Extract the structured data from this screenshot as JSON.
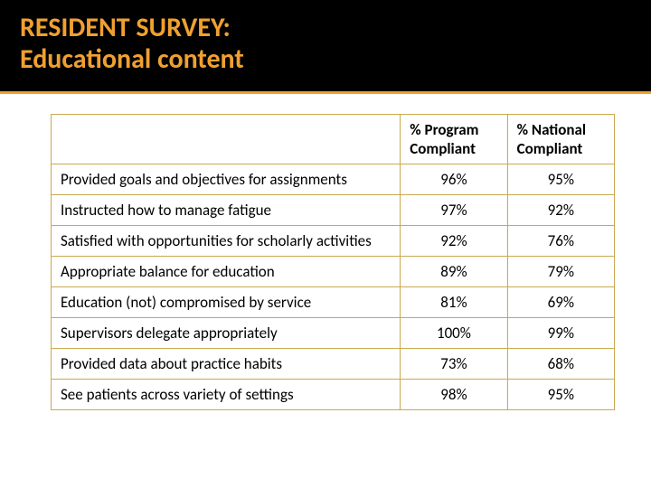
{
  "title": {
    "line1": "RESIDENT SURVEY:",
    "line2": "Educational content"
  },
  "table": {
    "columns": [
      "% Program Compliant",
      "% National Compliant"
    ],
    "rows": [
      {
        "label": "Provided goals and objectives for assignments",
        "program": "96%",
        "national": "95%"
      },
      {
        "label": "Instructed how to manage fatigue",
        "program": "97%",
        "national": "92%"
      },
      {
        "label": "Satisfied with opportunities for scholarly activities",
        "program": "92%",
        "national": "76%"
      },
      {
        "label": "Appropriate balance for education",
        "program": "89%",
        "national": "79%"
      },
      {
        "label": "Education (not) compromised by service",
        "program": "81%",
        "national": "69%"
      },
      {
        "label": "Supervisors delegate appropriately",
        "program": "100%",
        "national": "99%"
      },
      {
        "label": "Provided data about practice habits",
        "program": "73%",
        "national": "68%"
      },
      {
        "label": "See patients across variety of settings",
        "program": "98%",
        "national": "95%"
      }
    ],
    "border_color": "#c9a94f",
    "title_color": "#f0a030",
    "title_bg": "#000000"
  }
}
